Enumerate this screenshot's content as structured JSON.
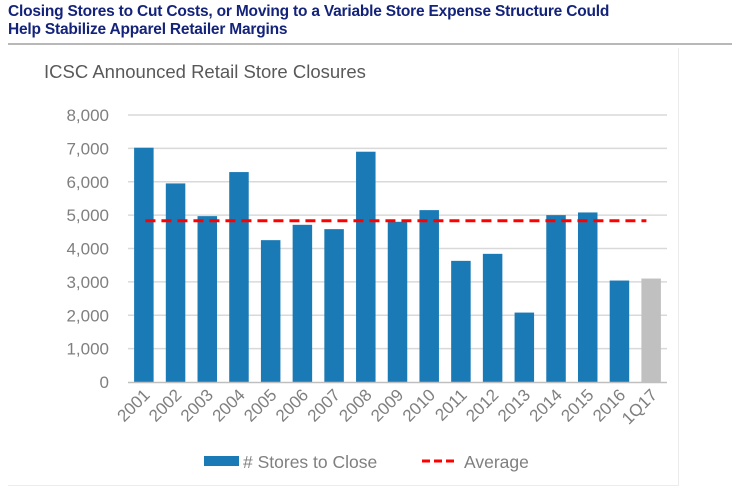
{
  "header": {
    "title_line1": "Closing Stores to Cut Costs, or Moving to a Variable Store Expense Structure Could",
    "title_line2": "Help Stabilize Apparel Retailer Margins"
  },
  "chart_data": {
    "type": "bar",
    "title": "ICSC Announced Retail Store Closures",
    "xlabel": "",
    "ylabel": "",
    "categories": [
      "2001",
      "2002",
      "2003",
      "2004",
      "2005",
      "2006",
      "2007",
      "2008",
      "2009",
      "2010",
      "2011",
      "2012",
      "2013",
      "2014",
      "2015",
      "2016",
      "1Q17"
    ],
    "series": [
      {
        "name": "# Stores to Close",
        "type": "bar",
        "color": "#1a7ab5",
        "highlight_color": "#c0c0c0",
        "highlight_categories": [
          "1Q17"
        ],
        "values": [
          7020,
          5950,
          4970,
          6290,
          4250,
          4710,
          4580,
          6900,
          4800,
          5150,
          3630,
          3840,
          2080,
          5000,
          5080,
          3040,
          3100
        ]
      },
      {
        "name": "Average",
        "type": "line",
        "style": "dashed",
        "color": "#ff0000",
        "value": 4830
      }
    ],
    "ylim": [
      0,
      8000
    ],
    "yticks": [
      0,
      1000,
      2000,
      3000,
      4000,
      5000,
      6000,
      7000,
      8000
    ],
    "ytick_labels": [
      "0",
      "1,000",
      "2,000",
      "3,000",
      "4,000",
      "5,000",
      "6,000",
      "7,000",
      "8,000"
    ],
    "grid": true,
    "legend": {
      "position": "bottom",
      "entries": [
        "# Stores to Close",
        "Average"
      ]
    }
  }
}
